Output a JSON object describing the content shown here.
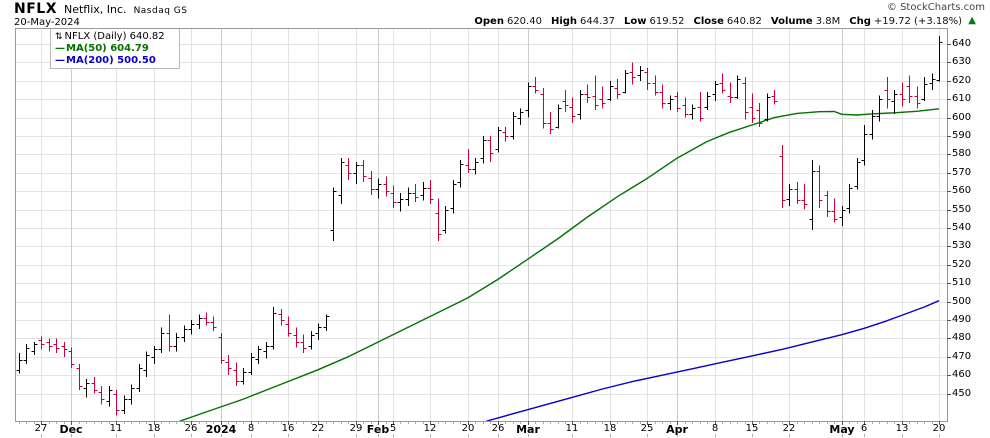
{
  "header": {
    "symbol": "NFLX",
    "company": "Netflix, Inc.",
    "exchange": "Nasdaq GS",
    "date": "20-May-2024",
    "copyright": "© StockCharts.com",
    "quote_items": [
      {
        "label": "Open",
        "value": "620.40"
      },
      {
        "label": "High",
        "value": "644.37"
      },
      {
        "label": "Low",
        "value": "619.52"
      },
      {
        "label": "Close",
        "value": "640.82"
      },
      {
        "label": "Volume",
        "value": "3.8M"
      },
      {
        "label": "Chg",
        "value": "+19.72 (+3.18%)"
      }
    ],
    "up_arrow": "▲"
  },
  "legend": {
    "arrows_icon": "⇅",
    "symbol_line": "NFLX (Daily) 640.82",
    "ma50_line": "MA(50) 604.79",
    "ma200_line": "MA(200) 500.50"
  },
  "colors": {
    "up_bar": "#000000",
    "down_bar": "#cc0033",
    "ma50": "#047101",
    "ma200": "#0a00c4",
    "grid": "#e3e3e3",
    "grid_month": "#cdcdcd",
    "border": "#999999",
    "tick": "#555555",
    "minor_tick": "#aaaaaa",
    "arrow_up": "#067d06"
  },
  "chart_data": {
    "type": "bar",
    "subtype": "ohlc-bars",
    "title": "NFLX (Daily)",
    "ylabel": "Price",
    "y_min": 435,
    "y_max": 648,
    "y_ticks": [
      450,
      460,
      470,
      480,
      490,
      500,
      510,
      520,
      530,
      540,
      550,
      560,
      570,
      580,
      590,
      600,
      610,
      620,
      630,
      640
    ],
    "x_ticks": [
      {
        "label": "27",
        "i": 3,
        "m": false
      },
      {
        "label": "Dec",
        "i": 7,
        "m": true
      },
      {
        "label": "11",
        "i": 13,
        "m": false
      },
      {
        "label": "18",
        "i": 18,
        "m": false
      },
      {
        "label": "26",
        "i": 23,
        "m": false
      },
      {
        "label": "2024",
        "i": 27,
        "m": true
      },
      {
        "label": "8",
        "i": 31,
        "m": false
      },
      {
        "label": "16",
        "i": 36,
        "m": false
      },
      {
        "label": "22",
        "i": 40,
        "m": false
      },
      {
        "label": "29",
        "i": 45,
        "m": false
      },
      {
        "label": "Feb",
        "i": 48,
        "m": true
      },
      {
        "label": "5",
        "i": 50,
        "m": false
      },
      {
        "label": "12",
        "i": 55,
        "m": false
      },
      {
        "label": "20",
        "i": 60,
        "m": false
      },
      {
        "label": "26",
        "i": 64,
        "m": false
      },
      {
        "label": "Mar",
        "i": 68,
        "m": true
      },
      {
        "label": "11",
        "i": 74,
        "m": false
      },
      {
        "label": "18",
        "i": 79,
        "m": false
      },
      {
        "label": "25",
        "i": 84,
        "m": false
      },
      {
        "label": "Apr",
        "i": 88,
        "m": true
      },
      {
        "label": "8",
        "i": 93,
        "m": false
      },
      {
        "label": "15",
        "i": 98,
        "m": false
      },
      {
        "label": "22",
        "i": 103,
        "m": false
      },
      {
        "label": "May",
        "i": 110,
        "m": true
      },
      {
        "label": "6",
        "i": 113,
        "m": false
      },
      {
        "label": "13",
        "i": 118,
        "m": false
      },
      {
        "label": "20",
        "i": 123,
        "m": false
      }
    ],
    "bars": [
      [
        "Nov 21",
        463,
        472,
        461,
        468
      ],
      [
        "Nov 22",
        468,
        477,
        466,
        475
      ],
      [
        "Nov 24",
        473,
        478,
        471,
        477
      ],
      [
        "Nov 27",
        479,
        481,
        474,
        477
      ],
      [
        "Nov 28",
        478,
        480,
        473,
        476
      ],
      [
        "Nov 29",
        477,
        480,
        472,
        475
      ],
      [
        "Nov 30",
        476,
        478,
        470,
        474
      ],
      [
        "Dec 1",
        473,
        475,
        464,
        466
      ],
      [
        "Dec 4",
        464,
        466,
        452,
        454
      ],
      [
        "Dec 5",
        453,
        458,
        448,
        456
      ],
      [
        "Dec 6",
        456,
        459,
        450,
        452
      ],
      [
        "Dec 7",
        451,
        454,
        444,
        447
      ],
      [
        "Dec 8",
        446,
        454,
        443,
        452
      ],
      [
        "Dec 11",
        450,
        452,
        438,
        441
      ],
      [
        "Dec 12",
        441,
        449,
        439,
        447
      ],
      [
        "Dec 13",
        447,
        455,
        444,
        453
      ],
      [
        "Dec 14",
        453,
        466,
        451,
        464
      ],
      [
        "Dec 15",
        463,
        473,
        459,
        471
      ],
      [
        "Dec 18",
        470,
        476,
        466,
        474
      ],
      [
        "Dec 19",
        474,
        486,
        472,
        483
      ],
      [
        "Dec 20",
        483,
        493,
        473,
        476
      ],
      [
        "Dec 21",
        476,
        483,
        473,
        481
      ],
      [
        "Dec 22",
        481,
        487,
        478,
        485
      ],
      [
        "Dec 26",
        485,
        490,
        482,
        488
      ],
      [
        "Dec 27",
        488,
        493,
        485,
        491
      ],
      [
        "Dec 28",
        491,
        494,
        487,
        489
      ],
      [
        "Dec 29",
        489,
        492,
        484,
        486
      ],
      [
        "Jan 2",
        481,
        483,
        466,
        468
      ],
      [
        "Jan 3",
        467,
        471,
        460,
        464
      ],
      [
        "Jan 4",
        463,
        467,
        454,
        457
      ],
      [
        "Jan 5",
        457,
        464,
        455,
        462
      ],
      [
        "Jan 8",
        462,
        472,
        460,
        470
      ],
      [
        "Jan 9",
        469,
        476,
        466,
        474
      ],
      [
        "Jan 10",
        473,
        478,
        469,
        476
      ],
      [
        "Jan 11",
        476,
        497,
        474,
        494
      ],
      [
        "Jan 12",
        493,
        496,
        487,
        490
      ],
      [
        "Jan 16",
        488,
        492,
        481,
        483
      ],
      [
        "Jan 17",
        482,
        486,
        475,
        478
      ],
      [
        "Jan 18",
        478,
        482,
        472,
        475
      ],
      [
        "Jan 19",
        476,
        484,
        474,
        482
      ],
      [
        "Jan 22",
        483,
        488,
        479,
        486
      ],
      [
        "Jan 23",
        486,
        493,
        484,
        492
      ],
      [
        "Jan 24",
        539,
        562,
        533,
        560
      ],
      [
        "Jan 25",
        558,
        578,
        553,
        576
      ],
      [
        "Jan 26",
        574,
        578,
        566,
        570
      ],
      [
        "Jan 29",
        570,
        576,
        564,
        574
      ],
      [
        "Jan 30",
        574,
        577,
        565,
        568
      ],
      [
        "Jan 31",
        567,
        571,
        558,
        561
      ],
      [
        "Feb 1",
        561,
        567,
        556,
        564
      ],
      [
        "Feb 2",
        564,
        568,
        557,
        560
      ],
      [
        "Feb 5",
        559,
        563,
        551,
        554
      ],
      [
        "Feb 6",
        554,
        559,
        549,
        556
      ],
      [
        "Feb 7",
        556,
        562,
        552,
        559
      ],
      [
        "Feb 8",
        559,
        564,
        554,
        557
      ],
      [
        "Feb 9",
        558,
        565,
        555,
        562
      ],
      [
        "Feb 12",
        562,
        566,
        553,
        556
      ],
      [
        "Feb 13",
        548,
        556,
        533,
        537
      ],
      [
        "Feb 14",
        539,
        552,
        537,
        550
      ],
      [
        "Feb 15",
        551,
        566,
        548,
        564
      ],
      [
        "Feb 16",
        565,
        577,
        562,
        575
      ],
      [
        "Feb 20",
        574,
        583,
        570,
        572
      ],
      [
        "Feb 21",
        572,
        578,
        569,
        576
      ],
      [
        "Feb 22",
        578,
        590,
        575,
        588
      ],
      [
        "Feb 23",
        588,
        590,
        576,
        581
      ],
      [
        "Feb 26",
        583,
        595,
        581,
        593
      ],
      [
        "Feb 27",
        592,
        595,
        587,
        590
      ],
      [
        "Feb 28",
        590,
        603,
        588,
        601
      ],
      [
        "Feb 29",
        600,
        605,
        596,
        603
      ],
      [
        "Mar 1",
        604,
        619,
        600,
        617
      ],
      [
        "Mar 4",
        617,
        622,
        613,
        615
      ],
      [
        "Mar 5",
        613,
        616,
        594,
        597
      ],
      [
        "Mar 6",
        597,
        603,
        591,
        594
      ],
      [
        "Mar 7",
        595,
        607,
        594,
        605
      ],
      [
        "Mar 8",
        609,
        615,
        603,
        607
      ],
      [
        "Mar 11",
        606,
        611,
        597,
        601
      ],
      [
        "Mar 12",
        602,
        615,
        599,
        613
      ],
      [
        "Mar 13",
        613,
        618,
        608,
        611
      ],
      [
        "Mar 14",
        612,
        623,
        604,
        607
      ],
      [
        "Mar 15",
        610,
        617,
        605,
        608
      ],
      [
        "Mar 18",
        610,
        620,
        609,
        617
      ],
      [
        "Mar 19",
        616,
        621,
        610,
        613
      ],
      [
        "Mar 20",
        614,
        626,
        613,
        624
      ],
      [
        "Mar 21",
        625,
        630,
        618,
        622
      ],
      [
        "Mar 22",
        623,
        628,
        620,
        626
      ],
      [
        "Mar 25",
        625,
        627,
        615,
        619
      ],
      [
        "Mar 26",
        619,
        623,
        612,
        614
      ],
      [
        "Mar 27",
        614,
        618,
        605,
        608
      ],
      [
        "Mar 28",
        608,
        612,
        604,
        610
      ],
      [
        "Apr 1",
        612,
        614,
        603,
        605
      ],
      [
        "Apr 2",
        607,
        611,
        600,
        602
      ],
      [
        "Apr 3",
        602,
        607,
        599,
        605
      ],
      [
        "Apr 4",
        606,
        614,
        598,
        600
      ],
      [
        "Apr 5",
        606,
        614,
        604,
        612
      ],
      [
        "Apr 8",
        613,
        620,
        609,
        618
      ],
      [
        "Apr 9",
        619,
        624,
        613,
        615
      ],
      [
        "Apr 10",
        612,
        619,
        608,
        611
      ],
      [
        "Apr 11",
        611,
        623,
        610,
        621
      ],
      [
        "Apr 12",
        619,
        622,
        599,
        603
      ],
      [
        "Apr 15",
        606,
        613,
        597,
        600
      ],
      [
        "Apr 16",
        604,
        608,
        595,
        597
      ],
      [
        "Apr 17",
        599,
        613,
        598,
        611
      ],
      [
        "Apr 18",
        612,
        615,
        607,
        609
      ],
      [
        "Apr 19",
        579,
        585,
        551,
        555
      ],
      [
        "Apr 22",
        556,
        564,
        552,
        561
      ],
      [
        "Apr 23",
        561,
        565,
        553,
        555
      ],
      [
        "Apr 24",
        555,
        564,
        550,
        553
      ],
      [
        "Apr 25",
        545,
        577,
        539,
        571
      ],
      [
        "Apr 26",
        571,
        574,
        551,
        555
      ],
      [
        "Apr 29",
        558,
        560,
        546,
        549
      ],
      [
        "Apr 30",
        549,
        556,
        543,
        545
      ],
      [
        "May 1",
        546,
        552,
        541,
        550
      ],
      [
        "May 2",
        551,
        564,
        548,
        562
      ],
      [
        "May 3",
        563,
        578,
        561,
        576
      ],
      [
        "May 6",
        577,
        596,
        574,
        591
      ],
      [
        "May 7",
        591,
        604,
        588,
        601
      ],
      [
        "May 8",
        601,
        612,
        598,
        610
      ],
      [
        "May 9",
        615,
        622,
        605,
        610
      ],
      [
        "May 10",
        609,
        615,
        602,
        613
      ],
      [
        "May 13",
        613,
        619,
        606,
        610
      ],
      [
        "May 14",
        617,
        623,
        608,
        612
      ],
      [
        "May 15",
        612,
        617,
        605,
        608
      ],
      [
        "May 16",
        610,
        622,
        609,
        618
      ],
      [
        "May 17",
        619,
        624,
        615,
        621
      ],
      [
        "May 20",
        620.4,
        644.37,
        619.52,
        640.82
      ]
    ],
    "series": [
      {
        "name": "MA(50)",
        "last": 604.79,
        "points": [
          [
            21.5,
            435
          ],
          [
            25,
            440
          ],
          [
            30,
            447
          ],
          [
            35,
            455
          ],
          [
            40,
            463
          ],
          [
            44,
            470
          ],
          [
            48,
            478
          ],
          [
            52,
            486
          ],
          [
            56,
            494
          ],
          [
            60,
            502
          ],
          [
            64,
            512
          ],
          [
            68,
            523
          ],
          [
            72,
            534
          ],
          [
            76,
            546
          ],
          [
            80,
            557
          ],
          [
            84,
            567
          ],
          [
            88,
            578
          ],
          [
            92,
            587
          ],
          [
            95,
            592
          ],
          [
            98,
            596
          ],
          [
            101,
            600
          ],
          [
            104,
            602.3
          ],
          [
            107,
            603.2
          ],
          [
            109,
            603.3
          ],
          [
            110,
            601.8
          ],
          [
            112,
            601.4
          ],
          [
            114,
            602
          ],
          [
            117,
            602.6
          ],
          [
            120,
            603.4
          ],
          [
            123,
            604.8
          ]
        ]
      },
      {
        "name": "MA(200)",
        "last": 500.5,
        "points": [
          [
            62.5,
            435
          ],
          [
            66,
            439
          ],
          [
            70,
            443.5
          ],
          [
            74,
            448
          ],
          [
            78,
            452.5
          ],
          [
            82,
            456.5
          ],
          [
            86,
            460
          ],
          [
            90,
            463.5
          ],
          [
            94,
            467
          ],
          [
            98,
            470.5
          ],
          [
            102,
            474
          ],
          [
            106,
            478
          ],
          [
            110,
            482
          ],
          [
            113,
            485.5
          ],
          [
            116,
            489.5
          ],
          [
            119,
            494
          ],
          [
            121,
            497
          ],
          [
            123,
            500.5
          ]
        ]
      }
    ],
    "legend_position": "top-left",
    "grid": true
  }
}
